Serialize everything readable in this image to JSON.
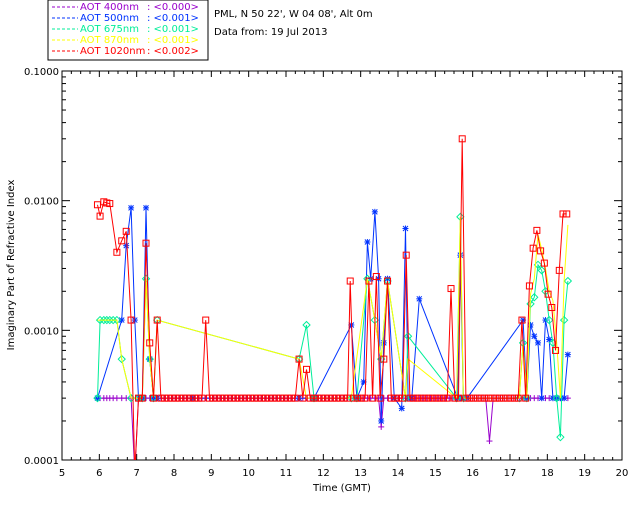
{
  "info": {
    "site": "PML, N 50 22', W 04 08', Alt 0m",
    "date": "Data from: 19 Jul 2013"
  },
  "chart_data": {
    "type": "line",
    "xlabel": "Time (GMT)",
    "ylabel": "Imaginary Part of Refractive Index",
    "xlim": [
      5,
      20
    ],
    "ylim": [
      0.0001,
      0.1
    ],
    "yscale": "log",
    "x_ticks": [
      "5",
      "6",
      "7",
      "8",
      "9",
      "10",
      "11",
      "12",
      "13",
      "14",
      "15",
      "16",
      "17",
      "18",
      "19",
      "20"
    ],
    "y_ticks": [
      "0.0001",
      "0.0010",
      "0.0100",
      "0.1000"
    ],
    "legend_position": "top-left",
    "series": [
      {
        "name": "AOT  400nm",
        "summary": ": <0.000>",
        "color": "#9900cc",
        "marker": "plus",
        "x": [
          5.95,
          6.02,
          6.12,
          6.2,
          6.28,
          6.37,
          6.47,
          6.6,
          6.72,
          6.85,
          6.95,
          7.05,
          7.15,
          7.25,
          7.35,
          7.45,
          7.55,
          7.65,
          7.75,
          7.85,
          7.95,
          8.05,
          8.15,
          8.25,
          8.35,
          8.45,
          8.55,
          8.65,
          8.75,
          8.85,
          8.95,
          9.05,
          9.15,
          9.25,
          9.35,
          9.45,
          9.55,
          9.65,
          9.75,
          9.85,
          9.95,
          10.05,
          10.15,
          10.25,
          10.35,
          10.45,
          10.55,
          10.65,
          10.75,
          10.85,
          10.95,
          11.05,
          11.15,
          11.25,
          11.35,
          11.45,
          11.55,
          11.65,
          11.75,
          11.85,
          11.95,
          12.05,
          12.15,
          12.25,
          12.35,
          12.45,
          12.55,
          12.65,
          12.72,
          12.8,
          12.9,
          12.98,
          13.08,
          13.18,
          13.27,
          13.38,
          13.48,
          13.55,
          13.62,
          13.72,
          13.82,
          13.92,
          14.02,
          14.1,
          14.2,
          14.27,
          14.37,
          14.47,
          14.57,
          14.67,
          14.77,
          14.87,
          14.97,
          15.07,
          15.17,
          15.27,
          15.37,
          15.47,
          15.57,
          15.67,
          15.75,
          15.85,
          15.95,
          16.05,
          16.15,
          16.25,
          16.35,
          16.45,
          16.55,
          16.65,
          16.75,
          16.85,
          16.95,
          17.05,
          17.15,
          17.25,
          17.35,
          17.45,
          17.55,
          17.65,
          17.75,
          17.85,
          17.95,
          18.05,
          18.15,
          18.25,
          18.35,
          18.45,
          18.55
        ],
        "values": [
          0.0003,
          0.0003,
          0.0003,
          0.0003,
          0.0003,
          0.0003,
          0.0003,
          0.0003,
          0.0003,
          0.0003,
          8e-05,
          0.0003,
          0.0003,
          0.0003,
          0.0003,
          0.0003,
          0.0003,
          0.0003,
          0.0003,
          0.0003,
          0.0003,
          0.0003,
          0.0003,
          0.0003,
          0.0003,
          0.0003,
          0.0003,
          0.0003,
          0.0003,
          0.0003,
          0.0003,
          0.0003,
          0.0003,
          0.0003,
          0.0003,
          0.0003,
          0.0003,
          0.0003,
          0.0003,
          0.0003,
          0.0003,
          0.0003,
          0.0003,
          0.0003,
          0.0003,
          0.0003,
          0.0003,
          0.0003,
          0.0003,
          0.0003,
          0.0003,
          0.0003,
          0.0003,
          0.0003,
          0.0003,
          0.0003,
          0.0003,
          0.0003,
          0.0003,
          0.0003,
          0.0003,
          0.0003,
          0.0003,
          0.0003,
          0.0003,
          0.0003,
          0.0003,
          0.0003,
          0.0003,
          0.0003,
          0.0003,
          0.0003,
          0.0003,
          0.0003,
          0.0003,
          0.0003,
          0.0003,
          0.00018,
          0.0003,
          0.0003,
          0.0003,
          0.0003,
          0.0003,
          0.0003,
          0.0003,
          0.0003,
          0.0003,
          0.0003,
          0.0003,
          0.0003,
          0.0003,
          0.0003,
          0.0003,
          0.0003,
          0.0003,
          0.0003,
          0.0003,
          0.0003,
          0.0003,
          0.0003,
          0.0003,
          0.0003,
          0.0003,
          0.0003,
          0.0003,
          0.0003,
          0.0003,
          0.00014,
          0.0003,
          0.0003,
          0.0003,
          0.0003,
          0.0003,
          0.0003,
          0.0003,
          0.0003,
          0.0003,
          0.0003,
          0.0003,
          0.0003,
          0.0003,
          0.0003,
          0.0003,
          0.0003,
          0.0003,
          0.0003,
          0.0003,
          0.0003,
          0.0003
        ]
      },
      {
        "name": "AOT  500nm",
        "summary": ": <0.001>",
        "color": "#0033ff",
        "marker": "star",
        "x": [
          5.95,
          6.6,
          6.72,
          6.85,
          6.95,
          7.05,
          7.15,
          7.25,
          7.35,
          7.45,
          7.55,
          8.5,
          11.35,
          11.75,
          12.75,
          12.9,
          13.08,
          13.18,
          13.27,
          13.38,
          13.48,
          13.55,
          13.62,
          13.72,
          13.9,
          14.1,
          14.2,
          14.27,
          14.37,
          14.57,
          15.6,
          15.67,
          15.75,
          15.85,
          17.35,
          17.45,
          17.55,
          17.65,
          17.75,
          17.85,
          17.95,
          18.05,
          18.15,
          18.25,
          18.35,
          18.45,
          18.55
        ],
        "values": [
          0.0003,
          0.0012,
          0.0045,
          0.0088,
          0.0012,
          0.0003,
          0.0003,
          0.0088,
          0.0006,
          0.0003,
          0.0003,
          0.0003,
          0.0003,
          0.0003,
          0.0011,
          0.0003,
          0.0004,
          0.0048,
          0.0025,
          0.0082,
          0.0025,
          0.0002,
          0.0008,
          0.0025,
          0.0003,
          0.00025,
          0.0061,
          0.0003,
          0.0003,
          0.00175,
          0.0003,
          0.0038,
          0.0003,
          0.0003,
          0.0012,
          0.0003,
          0.0011,
          0.0009,
          0.0008,
          0.0003,
          0.0012,
          0.00085,
          0.0003,
          0.0003,
          0.0003,
          0.0003,
          0.00065
        ]
      },
      {
        "name": "AOT  675nm",
        "summary": ": <0.001>",
        "color": "#00ee99",
        "marker": "diamond",
        "x": [
          5.95,
          6.02,
          6.12,
          6.2,
          6.28,
          6.37,
          6.47,
          6.6,
          6.85,
          7.05,
          7.15,
          7.25,
          7.35,
          7.45,
          7.55,
          11.35,
          11.55,
          11.75,
          12.75,
          12.9,
          13.18,
          13.38,
          13.55,
          13.72,
          14.2,
          14.27,
          15.57,
          15.67,
          15.75,
          17.25,
          17.35,
          17.45,
          17.55,
          17.65,
          17.75,
          17.85,
          17.95,
          18.05,
          18.15,
          18.25,
          18.35,
          18.45,
          18.55
        ],
        "values": [
          0.0003,
          0.0012,
          0.0012,
          0.0012,
          0.0012,
          0.0012,
          0.0012,
          0.0006,
          0.0003,
          0.0003,
          0.0003,
          0.0025,
          0.0006,
          0.0003,
          0.0012,
          0.0006,
          0.0011,
          0.0003,
          0.0003,
          0.0003,
          0.0025,
          0.0012,
          0.0006,
          0.0024,
          0.0003,
          0.0009,
          0.0003,
          0.0075,
          0.0003,
          0.0003,
          0.0008,
          0.0003,
          0.0016,
          0.0018,
          0.0032,
          0.0029,
          0.002,
          0.0012,
          0.0008,
          0.0003,
          0.00015,
          0.0012,
          0.0024
        ]
      },
      {
        "name": "AOT  870nm",
        "summary": ": <0.001>",
        "color": "#ffff00",
        "marker": "none",
        "x": [
          5.95,
          6.02,
          6.12,
          6.2,
          6.28,
          6.37,
          6.47,
          6.6,
          6.85,
          7.05,
          7.15,
          7.25,
          7.35,
          7.45,
          7.55,
          11.35,
          11.55,
          12.75,
          13.18,
          13.38,
          13.55,
          13.72,
          14.2,
          14.27,
          15.57,
          15.67,
          15.75,
          17.25,
          17.35,
          17.45,
          17.55,
          17.65,
          17.75,
          17.85,
          17.95,
          18.05,
          18.15,
          18.25,
          18.35,
          18.45,
          18.55
        ],
        "values": [
          0.0012,
          0.0012,
          0.0012,
          0.0012,
          0.0012,
          0.0012,
          0.0012,
          0.0006,
          0.0003,
          0.0003,
          0.0003,
          0.0025,
          0.0006,
          0.0003,
          0.0012,
          0.0006,
          0.0003,
          0.0003,
          0.0025,
          0.0012,
          0.0006,
          0.0024,
          0.0003,
          0.0006,
          0.0003,
          0.0075,
          0.0003,
          0.0003,
          0.0008,
          0.0003,
          0.0019,
          0.0025,
          0.0055,
          0.0042,
          0.003,
          0.002,
          0.0017,
          0.0008,
          0.0003,
          0.0024,
          0.0065
        ]
      },
      {
        "name": "AOT 1020nm",
        "summary": ": <0.002>",
        "color": "#ff0000",
        "marker": "square",
        "x": [
          5.95,
          6.02,
          6.12,
          6.2,
          6.28,
          6.47,
          6.6,
          6.72,
          6.85,
          6.95,
          7.05,
          7.15,
          7.25,
          7.35,
          7.45,
          7.55,
          7.65,
          7.75,
          7.85,
          7.95,
          8.05,
          8.15,
          8.25,
          8.35,
          8.45,
          8.55,
          8.65,
          8.75,
          8.85,
          8.95,
          9.05,
          9.15,
          9.25,
          9.35,
          9.45,
          9.55,
          9.65,
          9.75,
          9.85,
          9.95,
          10.05,
          10.15,
          10.25,
          10.35,
          10.45,
          10.55,
          10.65,
          10.75,
          10.85,
          10.95,
          11.05,
          11.15,
          11.25,
          11.35,
          11.45,
          11.55,
          11.65,
          11.75,
          11.85,
          11.95,
          12.05,
          12.15,
          12.25,
          12.35,
          12.45,
          12.55,
          12.65,
          12.72,
          12.82,
          12.92,
          13.02,
          13.12,
          13.22,
          13.32,
          13.42,
          13.52,
          13.62,
          13.72,
          13.82,
          13.92,
          14.02,
          14.12,
          14.22,
          14.32,
          14.42,
          14.52,
          14.62,
          14.72,
          14.82,
          14.92,
          15.02,
          15.12,
          15.22,
          15.32,
          15.42,
          15.52,
          15.62,
          15.72,
          15.82,
          15.92,
          16.02,
          16.12,
          16.22,
          16.32,
          16.42,
          16.52,
          16.62,
          16.72,
          16.82,
          16.92,
          17.02,
          17.12,
          17.22,
          17.32,
          17.42,
          17.52,
          17.62,
          17.72,
          17.82,
          17.92,
          18.02,
          18.12,
          18.22,
          18.32,
          18.42,
          18.52
        ],
        "values": [
          0.0093,
          0.0076,
          0.0098,
          0.0096,
          0.0095,
          0.004,
          0.0049,
          0.0058,
          0.0012,
          8e-05,
          0.0003,
          0.0003,
          0.0047,
          0.0008,
          0.0003,
          0.0012,
          0.0003,
          0.0003,
          0.0003,
          0.0003,
          0.0003,
          0.0003,
          0.0003,
          0.0003,
          0.0003,
          0.0003,
          0.0003,
          0.0003,
          0.0012,
          0.0003,
          0.0003,
          0.0003,
          0.0003,
          0.0003,
          0.0003,
          0.0003,
          0.0003,
          0.0003,
          0.0003,
          0.0003,
          0.0003,
          0.0003,
          0.0003,
          0.0003,
          0.0003,
          0.0003,
          0.0003,
          0.0003,
          0.0003,
          0.0003,
          0.0003,
          0.0003,
          0.0003,
          0.0006,
          0.0003,
          0.0005,
          0.0003,
          0.0003,
          0.0003,
          0.0003,
          0.0003,
          0.0003,
          0.0003,
          0.0003,
          0.0003,
          0.0003,
          0.0003,
          0.0024,
          0.0003,
          0.0003,
          0.0003,
          0.0003,
          0.0024,
          0.0003,
          0.0026,
          0.0003,
          0.0006,
          0.0024,
          0.0003,
          0.0003,
          0.0003,
          0.0003,
          0.0038,
          0.0003,
          0.0003,
          0.0003,
          0.0003,
          0.0003,
          0.0003,
          0.0003,
          0.0003,
          0.0003,
          0.0003,
          0.0003,
          0.0021,
          0.0003,
          0.0003,
          0.03,
          0.0003,
          0.0003,
          0.0003,
          0.0003,
          0.0003,
          0.0003,
          0.0003,
          0.0003,
          0.0003,
          0.0003,
          0.0003,
          0.0003,
          0.0003,
          0.0003,
          0.0003,
          0.0012,
          0.0003,
          0.0022,
          0.0043,
          0.0059,
          0.0041,
          0.0033,
          0.0019,
          0.0015,
          0.0007,
          0.0029,
          0.0079,
          0.0079
        ]
      }
    ]
  }
}
